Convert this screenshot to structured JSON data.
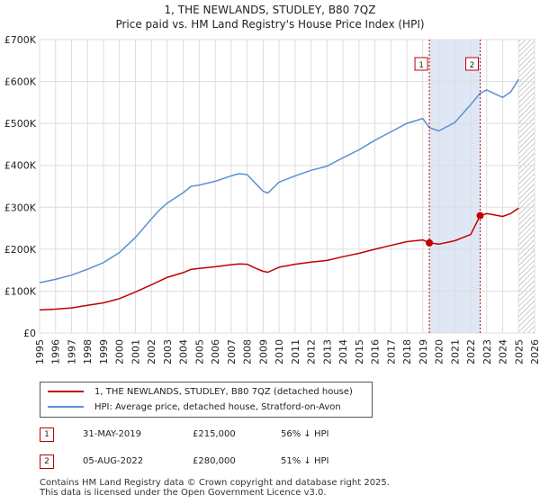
{
  "chart_data": {
    "type": "line",
    "title": "1, THE NEWLANDS, STUDLEY, B80 7QZ",
    "subtitle": "Price paid vs. HM Land Registry's House Price Index (HPI)",
    "xlim": [
      1995,
      2026
    ],
    "ylim": [
      0,
      700000
    ],
    "x_ticks": [
      1995,
      1996,
      1997,
      1998,
      1999,
      2000,
      2001,
      2002,
      2003,
      2004,
      2005,
      2006,
      2007,
      2008,
      2009,
      2010,
      2011,
      2012,
      2013,
      2014,
      2015,
      2016,
      2017,
      2018,
      2019,
      2020,
      2021,
      2022,
      2023,
      2024,
      2025,
      2026
    ],
    "x_tick_labels": [
      "1995",
      "1996",
      "1997",
      "1998",
      "1999",
      "2000",
      "2001",
      "2002",
      "2003",
      "2004",
      "2005",
      "2006",
      "2007",
      "2008",
      "2009",
      "2010",
      "2011",
      "2012",
      "2013",
      "2014",
      "2015",
      "2016",
      "2017",
      "2018",
      "2019",
      "2020",
      "2021",
      "2022",
      "2023",
      "2024",
      "2025",
      "2026"
    ],
    "y_ticks": [
      0,
      100000,
      200000,
      300000,
      400000,
      500000,
      600000,
      700000
    ],
    "y_tick_labels": [
      "£0",
      "£100K",
      "£200K",
      "£300K",
      "£400K",
      "£500K",
      "£600K",
      "£700K"
    ],
    "grid": true,
    "shaded_period": [
      2019.41,
      2022.59
    ],
    "forecast_hatch_from": 2025.0,
    "series": [
      {
        "name": "1, THE NEWLANDS, STUDLEY, B80 7QZ (detached house)",
        "color": "#c00000",
        "x": [
          1995.0,
          1996.0,
          1997.0,
          1998.0,
          1999.0,
          2000.0,
          2001.0,
          2002.0,
          2002.5,
          2003.0,
          2004.0,
          2004.5,
          2005.0,
          2006.0,
          2007.0,
          2007.5,
          2008.0,
          2008.5,
          2009.0,
          2009.3,
          2010.0,
          2011.0,
          2012.0,
          2013.0,
          2014.0,
          2015.0,
          2016.0,
          2017.0,
          2018.0,
          2019.0,
          2019.41,
          2020.0,
          2021.0,
          2022.0,
          2022.59,
          2023.0,
          2024.0,
          2024.5,
          2025.0
        ],
        "values": [
          55000,
          57000,
          60000,
          66000,
          72000,
          82000,
          98000,
          115000,
          124000,
          133000,
          144000,
          152000,
          154000,
          158000,
          163000,
          165000,
          164000,
          155000,
          147000,
          145000,
          157000,
          164000,
          169000,
          173000,
          182000,
          190000,
          200000,
          209000,
          218000,
          222000,
          215000,
          212000,
          220000,
          235000,
          280000,
          285000,
          278000,
          285000,
          298000
        ]
      },
      {
        "name": "HPI: Average price, detached house, Stratford-on-Avon",
        "color": "#5b8fd6",
        "x": [
          1995.0,
          1996.0,
          1997.0,
          1998.0,
          1999.0,
          2000.0,
          2001.0,
          2002.0,
          2002.5,
          2003.0,
          2004.0,
          2004.5,
          2005.0,
          2006.0,
          2007.0,
          2007.5,
          2008.0,
          2008.5,
          2009.0,
          2009.3,
          2010.0,
          2011.0,
          2012.0,
          2013.0,
          2014.0,
          2015.0,
          2016.0,
          2017.0,
          2018.0,
          2019.0,
          2019.41,
          2020.0,
          2021.0,
          2022.0,
          2022.59,
          2023.0,
          2024.0,
          2024.5,
          2025.0
        ],
        "values": [
          120000,
          128000,
          138000,
          152000,
          168000,
          192000,
          228000,
          272000,
          293000,
          310000,
          335000,
          350000,
          353000,
          362000,
          375000,
          380000,
          378000,
          358000,
          338000,
          334000,
          360000,
          375000,
          388000,
          398000,
          418000,
          437000,
          460000,
          480000,
          500000,
          512000,
          490000,
          482000,
          502000,
          545000,
          572000,
          580000,
          562000,
          575000,
          605000
        ]
      }
    ],
    "annotations": [
      {
        "label": "1",
        "x": 2019.41,
        "value": 215000
      },
      {
        "label": "2",
        "x": 2022.59,
        "value": 280000
      }
    ]
  },
  "legend": {
    "red_label": "1, THE NEWLANDS, STUDLEY, B80 7QZ (detached house)",
    "blue_label": "HPI: Average price, detached house, Stratford-on-Avon"
  },
  "transactions": [
    {
      "num": "1",
      "date": "31-MAY-2019",
      "price": "£215,000",
      "hpi": "56% ↓ HPI"
    },
    {
      "num": "2",
      "date": "05-AUG-2022",
      "price": "£280,000",
      "hpi": "51% ↓ HPI"
    }
  ],
  "footer": {
    "line1": "Contains HM Land Registry data © Crown copyright and database right 2025.",
    "line2": "This data is licensed under the Open Government Licence v3.0."
  }
}
